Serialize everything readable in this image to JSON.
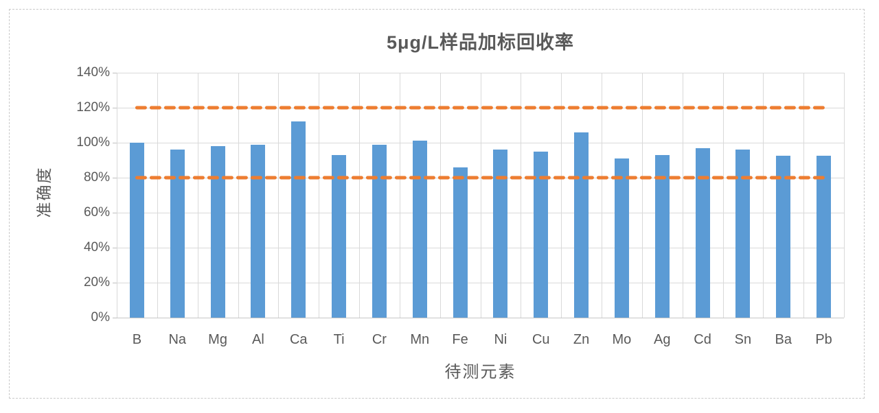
{
  "frame": {
    "border_color": "#c9c9c9",
    "background_color": "#ffffff"
  },
  "chart_data": {
    "type": "bar",
    "title": "5μg/L样品加标回收率",
    "xlabel": "待测元素",
    "ylabel": "准确度",
    "categories": [
      "B",
      "Na",
      "Mg",
      "Al",
      "Ca",
      "Ti",
      "Cr",
      "Mn",
      "Fe",
      "Ni",
      "Cu",
      "Zn",
      "Mo",
      "Ag",
      "Cd",
      "Sn",
      "Ba",
      "Pb"
    ],
    "values": [
      100,
      96,
      98,
      99,
      112,
      93,
      99,
      101,
      86,
      96,
      95,
      106,
      91,
      93,
      97,
      96,
      92.5,
      92.5
    ],
    "value_unit": "%",
    "ylim": [
      0,
      140
    ],
    "ytick_step": 20,
    "ytick_labels": [
      "0%",
      "20%",
      "40%",
      "60%",
      "80%",
      "100%",
      "120%",
      "140%"
    ],
    "grid": "horizontal-and-vertical-major",
    "legend": "none",
    "bar_color": "#5B9BD5",
    "gridline_color": "#d9d9d9",
    "axis_text_color": "#595959",
    "reference_lines": [
      {
        "value": 120,
        "style": "dashed",
        "color": "#ED7D31"
      },
      {
        "value": 80,
        "style": "dashed",
        "color": "#ED7D31"
      }
    ]
  }
}
